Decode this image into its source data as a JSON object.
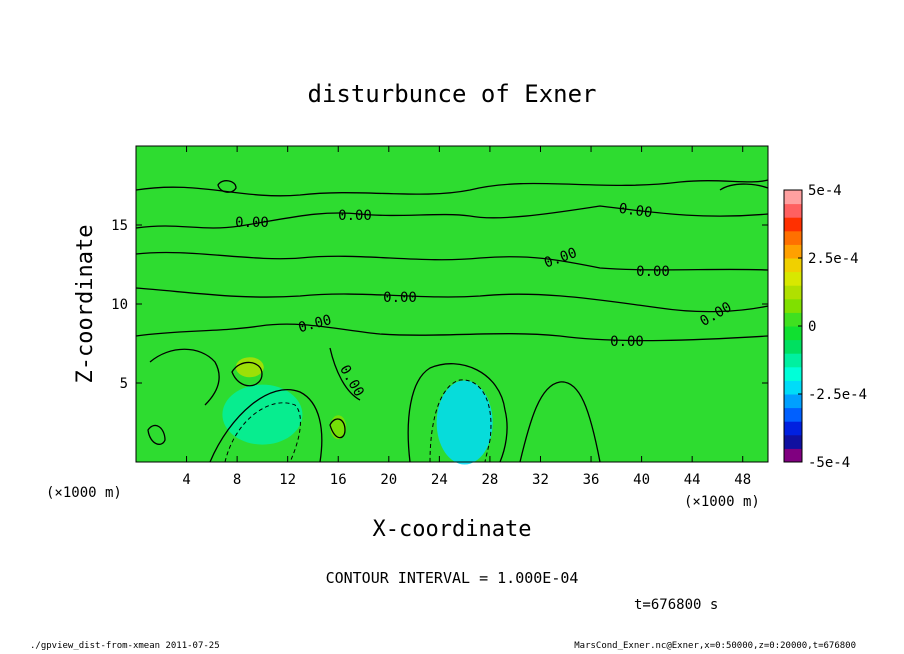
{
  "chart_data": {
    "type": "heatmap",
    "title": "disturbunce of Exner",
    "xlabel": "X-coordinate",
    "ylabel": "Z-coordinate",
    "x_unit_left": "(×1000 m)",
    "x_unit_right": "(×1000 m)",
    "xlim": [
      0,
      50
    ],
    "ylim": [
      0,
      20
    ],
    "xticks": [
      4,
      8,
      12,
      16,
      20,
      24,
      28,
      32,
      36,
      40,
      44,
      48
    ],
    "yticks": [
      5,
      10,
      15
    ],
    "contour_interval_text": "CONTOUR INTERVAL = 1.000E-04",
    "time_text": "t=676800 s",
    "contour_labels": [
      "0.00",
      "0.00",
      "0.00",
      "0.00",
      "0.00",
      "0.00",
      "0.00",
      "0.00",
      "0.00",
      "0.00"
    ],
    "colorbar": {
      "range": [
        -0.0005,
        0.0005
      ],
      "tick_labels": [
        "5e-4",
        "2.5e-4",
        "0",
        "-2.5e-4",
        "-5e-4"
      ],
      "tick_values": [
        0.0005,
        0.00025,
        0,
        -0.00025,
        -0.0005
      ],
      "colors": [
        "#800080",
        "#1010a0",
        "#0020e0",
        "#0060ff",
        "#00a0ff",
        "#00dcf8",
        "#00ffd8",
        "#00f0a0",
        "#00e060",
        "#10e030",
        "#40e020",
        "#80e000",
        "#b0e000",
        "#d8e800",
        "#f0d000",
        "#ffa000",
        "#ff7000",
        "#ff3000",
        "#ff6060",
        "#ffa0a0"
      ]
    },
    "features": [
      {
        "name": "negative anomaly",
        "x": 26,
        "z": 2.5,
        "value": -0.00025
      },
      {
        "name": "negative anomaly",
        "x": 10,
        "z": 3.0,
        "value": -0.00015
      },
      {
        "name": "positive anomaly",
        "x": 9,
        "z": 6.0,
        "value": 0.00012
      },
      {
        "name": "positive anomaly",
        "x": 16,
        "z": 2.2,
        "value": 8e-05
      }
    ]
  },
  "footer": {
    "left": "./gpview_dist-from-xmean 2011-07-25",
    "right": "MarsCond_Exner.nc@Exner,x=0:50000,z=0:20000,t=676800"
  }
}
